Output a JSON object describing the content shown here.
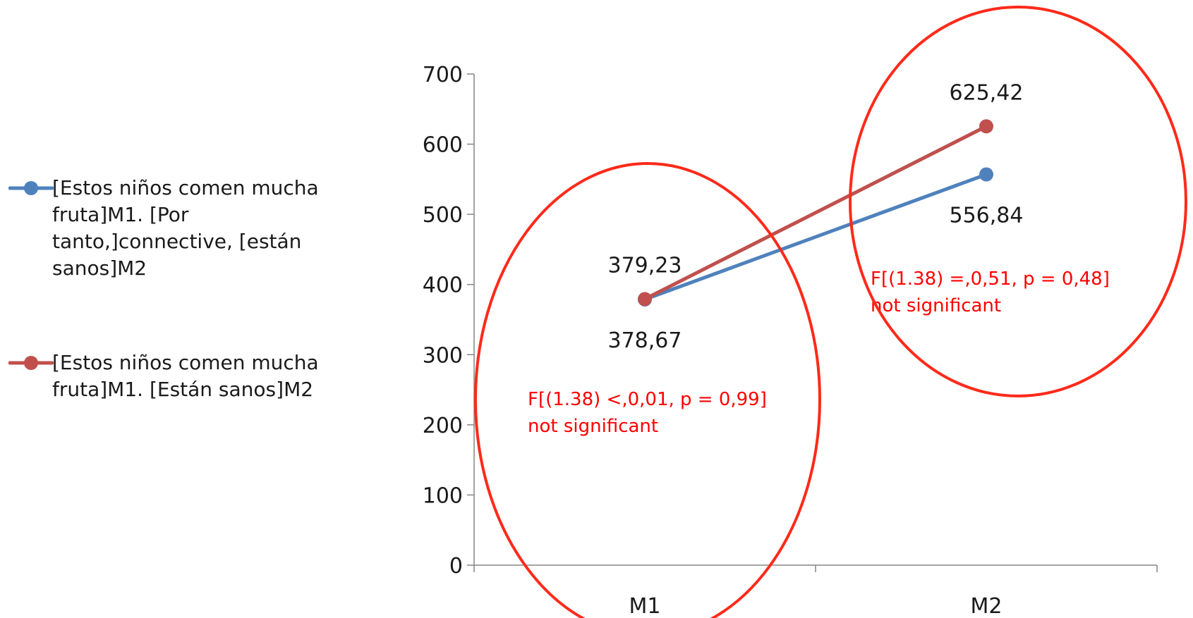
{
  "chart_data": {
    "type": "line",
    "categories": [
      "M1",
      "M2"
    ],
    "ylim": [
      0,
      700
    ],
    "yticks": [
      0,
      100,
      200,
      300,
      400,
      500,
      600,
      700
    ],
    "grid": false,
    "legend_position": "left",
    "series": [
      {
        "name": "[Estos niños comen mucha fruta]M1. [Por tanto,]connective, [están sanos]M2",
        "values": [
          378.67,
          556.84
        ],
        "data_labels": [
          "378,67",
          "556,84"
        ],
        "color": "#4f81bd"
      },
      {
        "name": "[Estos niños comen mucha fruta]M1. [Están sanos]M2",
        "values": [
          379.23,
          625.42
        ],
        "data_labels": [
          "379,23",
          "625,42"
        ],
        "color": "#c0504d"
      }
    ],
    "annotations": [
      {
        "category": "M1",
        "lines": [
          "F[(1.38) <,0,01, p = 0,99]",
          "not significant"
        ],
        "color": "#ff0000"
      },
      {
        "category": "M2",
        "lines": [
          "F[(1.38) =,0,51, p = 0,48]",
          "not significant"
        ],
        "color": "#ff0000"
      }
    ],
    "highlight_color": "#ff2a1a",
    "axis_color": "#868686"
  },
  "legend": {
    "items": [
      {
        "lines": [
          "[Estos niños comen mucha",
          "fruta]M1. [Por",
          "tanto,]connective, [están",
          "sanos]M2"
        ],
        "color": "#4f81bd"
      },
      {
        "lines": [
          "[Estos niños comen mucha",
          "fruta]M1. [Están sanos]M2"
        ],
        "color": "#c0504d"
      }
    ]
  }
}
